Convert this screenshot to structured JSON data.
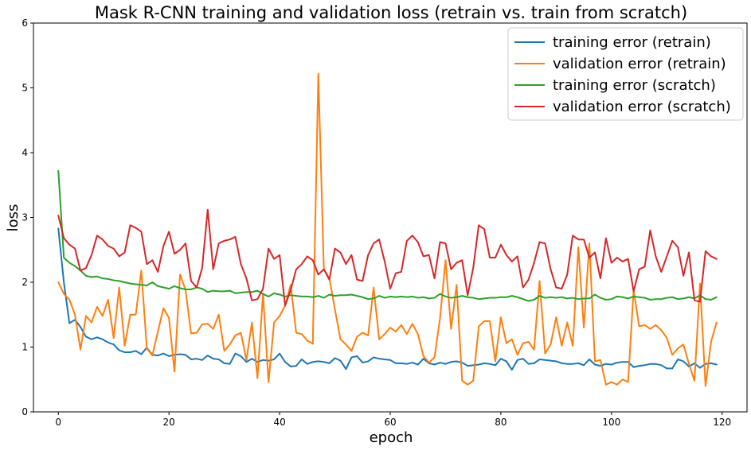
{
  "chart_data": {
    "type": "line",
    "title": "Mask R-CNN training and validation loss (retrain vs. train from scratch)",
    "xlabel": "epoch",
    "ylabel": "loss",
    "xlim": [
      -4.5,
      124.5
    ],
    "ylim": [
      0,
      6
    ],
    "xticks": [
      0,
      20,
      40,
      60,
      80,
      100,
      120
    ],
    "yticks": [
      0,
      1,
      2,
      3,
      4,
      5,
      6
    ],
    "grid": false,
    "legend_position": "top-right",
    "series": [
      {
        "name": "training error (retrain)",
        "color": "#1f77b4",
        "values": [
          2.83,
          2.0,
          1.37,
          1.42,
          1.31,
          1.16,
          1.12,
          1.15,
          1.12,
          1.07,
          1.04,
          0.95,
          0.92,
          0.92,
          0.94,
          0.89,
          0.99,
          0.88,
          0.87,
          0.9,
          0.86,
          0.88,
          0.89,
          0.88,
          0.81,
          0.82,
          0.8,
          0.87,
          0.82,
          0.81,
          0.75,
          0.74,
          0.9,
          0.86,
          0.77,
          0.82,
          0.77,
          0.8,
          0.79,
          0.81,
          0.9,
          0.77,
          0.7,
          0.71,
          0.81,
          0.74,
          0.77,
          0.78,
          0.77,
          0.75,
          0.83,
          0.79,
          0.66,
          0.84,
          0.86,
          0.76,
          0.78,
          0.84,
          0.82,
          0.81,
          0.8,
          0.75,
          0.75,
          0.74,
          0.76,
          0.73,
          0.82,
          0.75,
          0.73,
          0.76,
          0.74,
          0.77,
          0.78,
          0.76,
          0.71,
          0.72,
          0.73,
          0.75,
          0.74,
          0.72,
          0.82,
          0.78,
          0.65,
          0.8,
          0.82,
          0.74,
          0.75,
          0.81,
          0.8,
          0.79,
          0.78,
          0.75,
          0.74,
          0.74,
          0.75,
          0.72,
          0.81,
          0.73,
          0.71,
          0.74,
          0.73,
          0.76,
          0.77,
          0.77,
          0.69,
          0.71,
          0.72,
          0.74,
          0.74,
          0.72,
          0.67,
          0.67,
          0.81,
          0.78,
          0.7,
          0.75,
          0.68,
          0.74,
          0.75,
          0.73
        ]
      },
      {
        "name": "validation error (retrain)",
        "color": "#ff7f0e",
        "values": [
          2.0,
          1.82,
          1.73,
          1.5,
          0.96,
          1.48,
          1.38,
          1.62,
          1.48,
          1.73,
          1.14,
          1.92,
          1.02,
          1.5,
          1.5,
          2.18,
          0.98,
          0.87,
          1.24,
          1.6,
          1.45,
          0.62,
          2.12,
          1.88,
          1.21,
          1.22,
          1.35,
          1.36,
          1.28,
          1.5,
          0.94,
          1.04,
          1.18,
          1.22,
          0.8,
          1.38,
          0.52,
          1.82,
          0.46,
          1.38,
          1.48,
          1.64,
          1.96,
          1.22,
          1.2,
          1.1,
          1.05,
          5.22,
          2.2,
          2.06,
          1.58,
          1.12,
          1.04,
          0.94,
          1.16,
          1.22,
          1.18,
          1.92,
          1.12,
          1.2,
          1.3,
          1.24,
          1.34,
          1.2,
          1.36,
          1.2,
          0.86,
          0.76,
          0.84,
          1.44,
          2.34,
          1.28,
          1.96,
          0.48,
          0.42,
          0.48,
          1.32,
          1.4,
          1.4,
          0.78,
          1.46,
          1.06,
          1.12,
          0.88,
          1.06,
          1.08,
          0.96,
          2.02,
          0.9,
          1.04,
          1.46,
          1.02,
          1.38,
          1.02,
          2.54,
          1.3,
          2.6,
          0.78,
          0.8,
          0.42,
          0.46,
          0.42,
          0.5,
          0.46,
          1.88,
          1.32,
          1.34,
          1.28,
          1.34,
          1.26,
          1.14,
          0.88,
          0.98,
          1.04,
          0.74,
          0.48,
          1.98,
          0.4,
          1.08,
          1.38
        ]
      },
      {
        "name": "training error (scratch)",
        "color": "#2ca02c",
        "values": [
          3.72,
          2.38,
          2.3,
          2.25,
          2.18,
          2.1,
          2.08,
          2.09,
          2.06,
          2.05,
          2.03,
          2.02,
          2.0,
          1.98,
          1.97,
          1.96,
          1.95,
          2.0,
          1.94,
          1.92,
          1.9,
          1.94,
          1.91,
          1.89,
          1.89,
          1.92,
          1.9,
          1.85,
          1.87,
          1.86,
          1.86,
          1.87,
          1.83,
          1.84,
          1.85,
          1.85,
          1.87,
          1.82,
          1.78,
          1.83,
          1.81,
          1.78,
          1.8,
          1.79,
          1.78,
          1.78,
          1.77,
          1.79,
          1.76,
          1.81,
          1.79,
          1.8,
          1.8,
          1.81,
          1.79,
          1.77,
          1.74,
          1.75,
          1.79,
          1.76,
          1.78,
          1.77,
          1.78,
          1.77,
          1.78,
          1.76,
          1.77,
          1.75,
          1.76,
          1.82,
          1.78,
          1.76,
          1.77,
          1.79,
          1.77,
          1.76,
          1.74,
          1.75,
          1.76,
          1.76,
          1.77,
          1.77,
          1.79,
          1.77,
          1.74,
          1.71,
          1.73,
          1.79,
          1.76,
          1.77,
          1.76,
          1.77,
          1.75,
          1.76,
          1.74,
          1.75,
          1.75,
          1.81,
          1.76,
          1.73,
          1.74,
          1.78,
          1.77,
          1.75,
          1.78,
          1.77,
          1.76,
          1.73,
          1.74,
          1.74,
          1.76,
          1.77,
          1.74,
          1.75,
          1.77,
          1.75,
          1.8,
          1.74,
          1.73,
          1.77
        ]
      },
      {
        "name": "validation error (scratch)",
        "color": "#d62728",
        "values": [
          3.03,
          2.68,
          2.58,
          2.52,
          2.18,
          2.22,
          2.42,
          2.72,
          2.66,
          2.56,
          2.52,
          2.4,
          2.46,
          2.88,
          2.84,
          2.78,
          2.28,
          2.34,
          2.16,
          2.56,
          2.78,
          2.44,
          2.5,
          2.6,
          2.02,
          1.92,
          2.22,
          3.12,
          2.2,
          2.6,
          2.64,
          2.66,
          2.7,
          2.28,
          2.06,
          1.72,
          1.74,
          1.9,
          2.52,
          2.36,
          2.42,
          1.64,
          1.88,
          2.2,
          2.28,
          2.4,
          2.34,
          2.12,
          2.2,
          2.04,
          2.52,
          2.46,
          2.28,
          2.42,
          2.04,
          2.02,
          2.42,
          2.6,
          2.66,
          2.32,
          1.9,
          2.14,
          2.16,
          2.64,
          2.72,
          2.62,
          2.4,
          2.42,
          2.06,
          2.62,
          2.6,
          2.2,
          2.3,
          2.34,
          1.8,
          2.22,
          2.88,
          2.82,
          2.38,
          2.38,
          2.58,
          2.42,
          2.32,
          2.4,
          1.92,
          2.04,
          2.3,
          2.62,
          2.6,
          2.2,
          1.92,
          1.9,
          2.12,
          2.72,
          2.66,
          2.66,
          2.38,
          2.46,
          2.06,
          2.68,
          2.3,
          2.38,
          2.32,
          2.36,
          1.86,
          2.2,
          2.24,
          2.8,
          2.4,
          2.16,
          2.4,
          2.64,
          2.54,
          2.1,
          2.46,
          1.72,
          1.7,
          2.48,
          2.4,
          2.36
        ]
      }
    ]
  }
}
